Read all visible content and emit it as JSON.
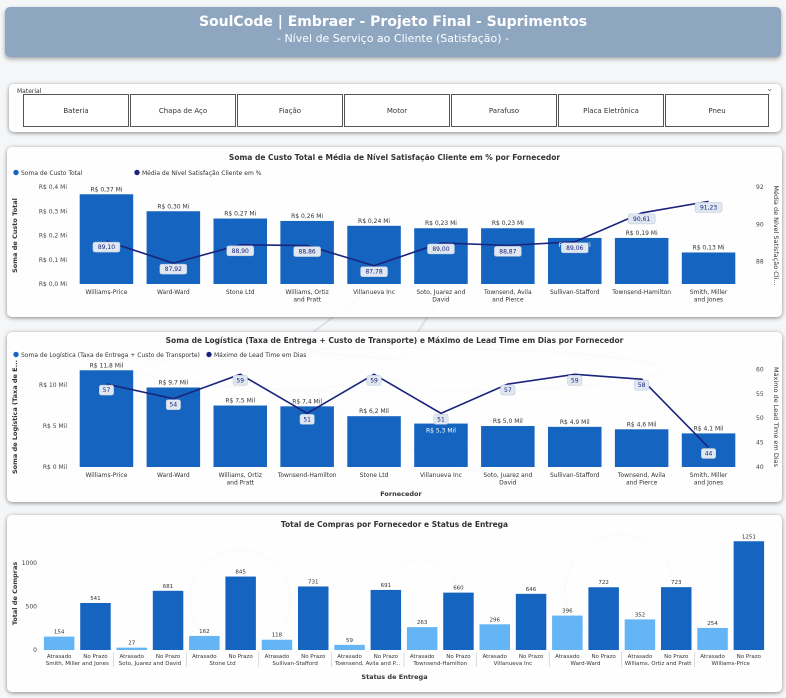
{
  "header": {
    "title": "SoulCode | Embraer - Projeto Final - Suprimentos",
    "subtitle": "- Nível de Serviço ao Cliente (Satisfação) -"
  },
  "slicer": {
    "title": "Material",
    "options": [
      "Bateria",
      "Chapa de Aço",
      "Fiação",
      "Motor",
      "Parafuso",
      "Placa Eletrônica",
      "Pneu"
    ]
  },
  "colors": {
    "bar": "#1565c0",
    "line": "#1a237e",
    "late": "#64b5f6",
    "ontime": "#1565c0"
  },
  "chart_data": [
    {
      "type": "bar",
      "title": "Soma de Custo Total e Média de Nível Satisfação Cliente em % por Fornecedor",
      "legend": [
        "Soma de Custo Total",
        "Média de Nível Satisfação Cliente em %"
      ],
      "ylabel": "Soma de Custo Total",
      "y2label": "Média de Nível Satisfação Cli...",
      "categories": [
        "Williams-Price",
        "Ward-Ward",
        "Stone Ltd",
        "Williams, Ortiz and Pratt",
        "Villanueva Inc",
        "Soto, Juarez and David",
        "Townsend, Avila and Pierce",
        "Sullivan-Stafford",
        "Townsend-Hamilton",
        "Smith, Miller and Jones"
      ],
      "series": [
        {
          "name": "Soma de Custo Total",
          "values": [
            0.37,
            0.3,
            0.27,
            0.26,
            0.24,
            0.23,
            0.23,
            0.19,
            0.19,
            0.13
          ],
          "labels": [
            "R$ 0,37 Mi",
            "R$ 0,30 Mi",
            "R$ 0,27 Mi",
            "R$ 0,26 Mi",
            "R$ 0,24 Mi",
            "R$ 0,23 Mi",
            "R$ 0,23 Mi",
            "R$ 0,19 Mi",
            "R$ 0,19 Mi",
            "R$ 0,13 Mi"
          ]
        },
        {
          "name": "Média de Nível Satisfação Cliente em %",
          "values": [
            89.1,
            87.92,
            88.9,
            88.86,
            87.78,
            89.0,
            88.87,
            89.06,
            90.61,
            91.23
          ],
          "labels": [
            "89,10",
            "87,92",
            "88,90",
            "88,86",
            "87,78",
            "89,00",
            "88,87",
            "89,06",
            "90,61",
            "91,23"
          ]
        }
      ],
      "yticks": [
        "R$ 0,0 Mi",
        "R$ 0,1 Mi",
        "R$ 0,2 Mi",
        "R$ 0,3 Mi",
        "R$ 0,4 Mi"
      ],
      "ylim": [
        0,
        0.4
      ],
      "y2ticks": [
        "88",
        "90",
        "92"
      ],
      "y2lim": [
        86.8,
        92
      ]
    },
    {
      "type": "bar",
      "title": "Soma de Logística (Taxa de Entrega + Custo de Transporte) e Máximo de Lead Time em Dias por Fornecedor",
      "legend": [
        "Soma de Logística (Taxa de Entrega + Custo de Transporte)",
        "Máximo de Lead Time em Dias"
      ],
      "ylabel": "Soma de Logística (Taxa de E...",
      "y2label": "Máximo de Lead Time em Dias",
      "xlabel": "Fornecedor",
      "categories": [
        "Williams-Price",
        "Ward-Ward",
        "Williams, Ortiz and Pratt",
        "Townsend-Hamilton",
        "Stone Ltd",
        "Villanueva Inc",
        "Soto, Juarez and David",
        "Sullivan-Stafford",
        "Townsend, Avila and Pierce",
        "Smith, Miller and Jones"
      ],
      "series": [
        {
          "name": "Soma de Logística (Taxa de Entrega + Custo de Transporte)",
          "values": [
            11.8,
            9.7,
            7.5,
            7.4,
            6.2,
            5.3,
            5.0,
            4.9,
            4.6,
            4.1
          ],
          "labels": [
            "R$ 11,8 Mil",
            "R$ 9,7 Mil",
            "R$ 7,5 Mil",
            "R$ 7,4 Mil",
            "R$ 6,2 Mil",
            "R$ 5,3 Mil",
            "R$ 5,0 Mil",
            "R$ 4,9 Mil",
            "R$ 4,6 Mil",
            "R$ 4,1 Mil"
          ]
        },
        {
          "name": "Máximo de Lead Time em Dias",
          "values": [
            57,
            54,
            59,
            51,
            59,
            51,
            57,
            59,
            58,
            44
          ],
          "labels": [
            "57",
            "54",
            "59",
            "51",
            "59",
            "51",
            "57",
            "59",
            "58",
            "44"
          ]
        }
      ],
      "yticks": [
        "R$ 0 Mil",
        "R$ 5 Mil",
        "R$ 10 Mil"
      ],
      "ylim": [
        0,
        12.2
      ],
      "y2ticks": [
        "40",
        "45",
        "50",
        "55",
        "60"
      ],
      "y2lim": [
        40,
        60.5
      ]
    },
    {
      "type": "bar",
      "title": "Total de Compras por Fornecedor e Status de Entrega",
      "ylabel": "Total de Compras",
      "xlabel": "Status de Entrega",
      "yticks": [
        "0",
        "500",
        "1000"
      ],
      "ylim": [
        0,
        1300
      ],
      "groups": [
        {
          "supplier": "Smith, Miller and Jones",
          "late": 154,
          "ontime": 541
        },
        {
          "supplier": "Soto, Juarez and David",
          "late": 27,
          "ontime": 681
        },
        {
          "supplier": "Stone Ltd",
          "late": 162,
          "ontime": 845
        },
        {
          "supplier": "Sullivan-Stafford",
          "late": 118,
          "ontime": 731
        },
        {
          "supplier": "Townsend, Avila and P...",
          "late": 59,
          "ontime": 691
        },
        {
          "supplier": "Townsend-Hamilton",
          "late": 263,
          "ontime": 660
        },
        {
          "supplier": "Villanueva Inc",
          "late": 296,
          "ontime": 646
        },
        {
          "supplier": "Ward-Ward",
          "late": 396,
          "ontime": 722
        },
        {
          "supplier": "Williams, Ortiz and Pratt",
          "late": 352,
          "ontime": 723
        },
        {
          "supplier": "Williams-Price",
          "late": 254,
          "ontime": 1251
        }
      ],
      "status_labels": [
        "Atrasado",
        "No Prazo"
      ]
    }
  ]
}
